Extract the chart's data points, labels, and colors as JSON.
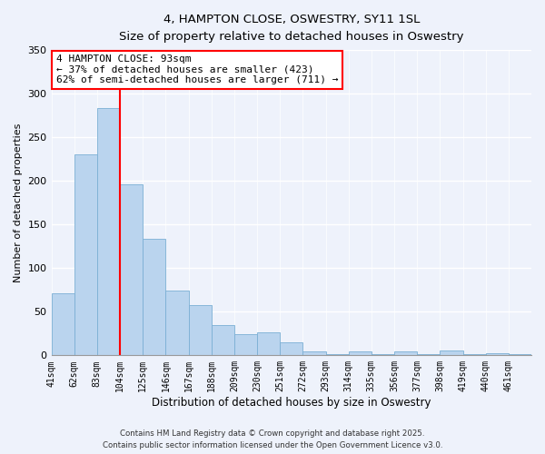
{
  "title": "4, HAMPTON CLOSE, OSWESTRY, SY11 1SL",
  "subtitle": "Size of property relative to detached houses in Oswestry",
  "xlabel": "Distribution of detached houses by size in Oswestry",
  "ylabel": "Number of detached properties",
  "bar_values": [
    71,
    230,
    283,
    196,
    134,
    74,
    58,
    35,
    24,
    26,
    15,
    5,
    1,
    4,
    1,
    4,
    1,
    6,
    1,
    2,
    1
  ],
  "bar_labels": [
    "41sqm",
    "62sqm",
    "83sqm",
    "104sqm",
    "125sqm",
    "146sqm",
    "167sqm",
    "188sqm",
    "209sqm",
    "230sqm",
    "251sqm",
    "272sqm",
    "293sqm",
    "314sqm",
    "335sqm",
    "356sqm",
    "377sqm",
    "398sqm",
    "419sqm",
    "440sqm",
    "461sqm"
  ],
  "bar_color": "#bad4ee",
  "bar_edge_color": "#7bafd4",
  "redline_x": 3,
  "ylim": [
    0,
    350
  ],
  "yticks": [
    0,
    50,
    100,
    150,
    200,
    250,
    300,
    350
  ],
  "annotation_title": "4 HAMPTON CLOSE: 93sqm",
  "annotation_line1": "← 37% of detached houses are smaller (423)",
  "annotation_line2": "62% of semi-detached houses are larger (711) →",
  "footer1": "Contains HM Land Registry data © Crown copyright and database right 2025.",
  "footer2": "Contains public sector information licensed under the Open Government Licence v3.0.",
  "bg_color": "#eef2fb"
}
